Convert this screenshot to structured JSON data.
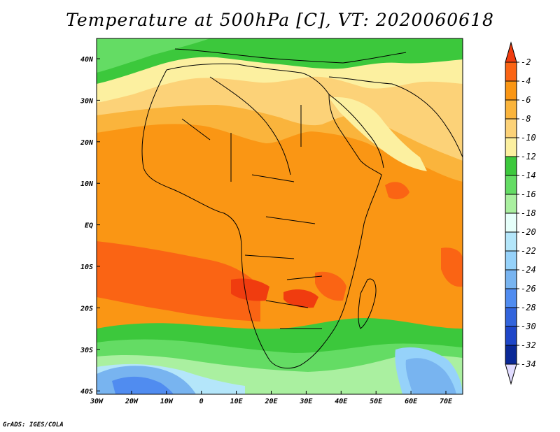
{
  "title": "Temperature at 500hPa [C], VT: 2020060618",
  "credit": "GrADS: IGES/COLA",
  "map": {
    "lat_labels": [
      "40N",
      "30N",
      "20N",
      "10N",
      "EQ",
      "10S",
      "20S",
      "30S",
      "40S"
    ],
    "lon_labels": [
      "30W",
      "20W",
      "10W",
      "0",
      "10E",
      "20E",
      "30E",
      "40E",
      "50E",
      "60E",
      "70E"
    ],
    "lat_range": [
      -40,
      45
    ],
    "lon_range": [
      -30,
      75
    ]
  },
  "colorbar": {
    "labels": [
      "-2",
      "-4",
      "-6",
      "-8",
      "-10",
      "-12",
      "-14",
      "-16",
      "-18",
      "-20",
      "-22",
      "-24",
      "-26",
      "-28",
      "-30",
      "-32",
      "-34"
    ],
    "colors": {
      "gt_-2": "#f03c0f",
      "-4_-2": "#fa6414",
      "-6_-4": "#fa9614",
      "-8_-6": "#fab43c",
      "-10_-8": "#fcd278",
      "-12_-10": "#fcf0a0",
      "-14_-12": "#3cc83c",
      "-16_-14": "#64dc64",
      "-18_-16": "#aaf0a0",
      "-20_-18": "#e6fffa",
      "-22_-20": "#b4e6fa",
      "-24_-22": "#96d2fa",
      "-26_-24": "#78b4f0",
      "-28_-26": "#508cf0",
      "-30_-28": "#3264dc",
      "-32_-30": "#1e46c8",
      "-34_-32": "#0a2896",
      "lt_-34": "#e1dcff"
    }
  },
  "field_regions": [
    {
      "band": "-6_-4",
      "desc": "tropics"
    },
    {
      "band": "-4_-2",
      "desc": "southern subtropics"
    },
    {
      "band": "-8_-6",
      "desc": "Sahara"
    },
    {
      "band": "-10_-8",
      "desc": "Arabia"
    },
    {
      "band": "-12_-10",
      "desc": "North Africa"
    },
    {
      "band": "-14_-12",
      "desc": "Mediterranean"
    },
    {
      "band": "-16_-14",
      "desc": "Southern Ocean"
    },
    {
      "band": "-18_-16",
      "desc": "Southern Ocean"
    },
    {
      "band": "-26_-24",
      "desc": "Southern Ocean"
    }
  ]
}
